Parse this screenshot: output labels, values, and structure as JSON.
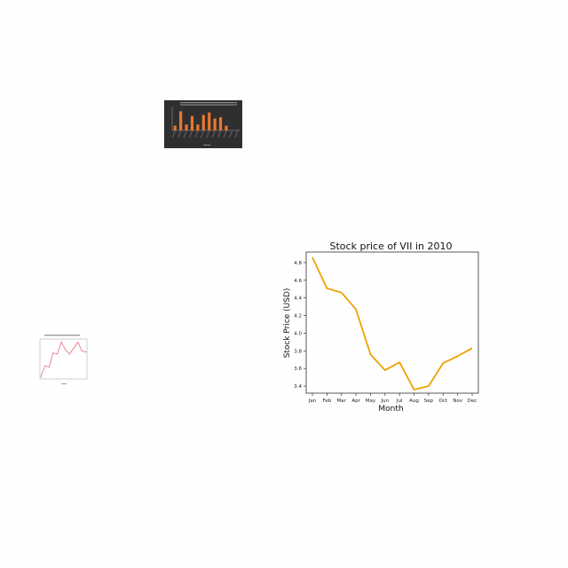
{
  "chart_data": [
    {
      "type": "bar",
      "title": "",
      "xlabel": "",
      "ylabel": "",
      "categories": [
        "",
        "",
        "",
        "",
        "",
        "",
        "",
        "",
        "",
        "",
        "",
        ""
      ],
      "values": [
        2,
        8,
        2.5,
        6,
        2.5,
        6.5,
        7.5,
        5,
        5.5,
        2,
        0,
        0
      ],
      "ylim": [
        0,
        10
      ],
      "grid": false,
      "colors": {
        "background": "#2f2f2f",
        "bar": "#e8772e",
        "text": "#d8d8d8"
      }
    },
    {
      "type": "line",
      "title": "",
      "xlabel": "",
      "ylabel": "",
      "x": [
        1,
        2,
        3,
        4,
        5,
        6,
        7,
        8,
        9,
        10,
        11,
        12
      ],
      "series": [
        {
          "values": [
            1.0,
            2.1,
            2.0,
            3.4,
            3.3,
            4.5,
            3.7,
            3.3,
            3.9,
            4.5,
            3.6,
            3.5
          ]
        }
      ],
      "ylim": [
        0.8,
        4.8
      ],
      "grid": false,
      "colors": {
        "line": "#e07080"
      }
    },
    {
      "type": "line",
      "title": "Stock price of VII in 2010",
      "xlabel": "Month",
      "ylabel": "Stock Price (USD)",
      "categories": [
        "Jan",
        "Feb",
        "Mar",
        "Apr",
        "May",
        "Jun",
        "Jul",
        "Aug",
        "Sep",
        "Oct",
        "Nov",
        "Dec"
      ],
      "series": [
        {
          "values": [
            4.86,
            4.51,
            4.46,
            4.27,
            3.76,
            3.58,
            3.67,
            3.36,
            3.4,
            3.66,
            3.74,
            3.83
          ]
        }
      ],
      "yticks": [
        "3.4",
        "3.6",
        "3.8",
        "4.0",
        "4.2",
        "4.4",
        "4.6",
        "4.8"
      ],
      "ylim": [
        3.32,
        4.92
      ],
      "grid": false,
      "colors": {
        "line": "#f0a000",
        "axes": "#333333"
      }
    }
  ]
}
